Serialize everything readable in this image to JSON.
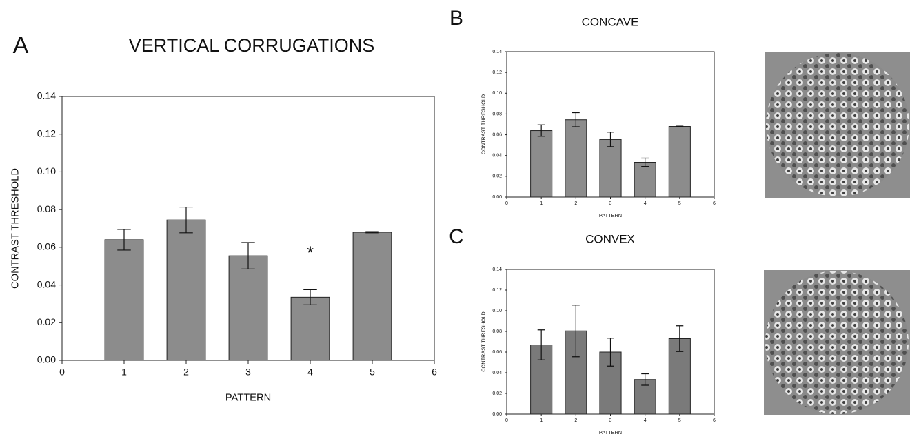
{
  "chart_data": [
    {
      "type": "bar",
      "panel": "A",
      "title": "VERTICAL CORRUGATIONS",
      "xlabel": "PATTERN",
      "ylabel": "CONTRAST THRESHOLD",
      "x": [
        1,
        2,
        3,
        4,
        5
      ],
      "values": [
        0.064,
        0.0745,
        0.0555,
        0.0335,
        0.068
      ],
      "errors": [
        0.0055,
        0.0068,
        0.007,
        0.004,
        0.0003
      ],
      "color": "#8c8c8c",
      "annotation": "*",
      "xlim": [
        0,
        6
      ],
      "xticks": [
        0,
        1,
        2,
        3,
        4,
        5,
        6
      ],
      "ylim": [
        0,
        0.14
      ],
      "yticks": [
        {
          "value": 0,
          "label": "0.00"
        },
        {
          "value": 0.02,
          "label": "0.02"
        },
        {
          "value": 0.04,
          "label": "0.04"
        },
        {
          "value": 0.06,
          "label": "0.06"
        },
        {
          "value": 0.08,
          "label": "0.08"
        },
        {
          "value": 0.1,
          "label": "0.10"
        },
        {
          "value": 0.12,
          "label": "0.12"
        },
        {
          "value": 0.14,
          "label": "0.14"
        }
      ]
    },
    {
      "type": "bar",
      "panel": "B",
      "title": "CONCAVE",
      "xlabel": "PATTERN",
      "ylabel": "CONTRAST THRESHOLD",
      "x": [
        1,
        2,
        3,
        4,
        5
      ],
      "values": [
        0.064,
        0.0745,
        0.0555,
        0.0335,
        0.068
      ],
      "errors": [
        0.0055,
        0.0068,
        0.007,
        0.004,
        0.0003
      ],
      "color": "#8c8c8c",
      "xlim": [
        0,
        6
      ],
      "xticks": [
        0,
        1,
        2,
        3,
        4,
        5,
        6
      ],
      "ylim": [
        0,
        0.14
      ],
      "yticks": [
        {
          "value": 0,
          "label": "0.00"
        },
        {
          "value": 0.02,
          "label": "0.02"
        },
        {
          "value": 0.04,
          "label": "0.04"
        },
        {
          "value": 0.06,
          "label": "0.06"
        },
        {
          "value": 0.08,
          "label": "0.08"
        },
        {
          "value": 0.1,
          "label": "0.10"
        },
        {
          "value": 0.12,
          "label": "0.12"
        },
        {
          "value": 0.14,
          "label": "0.14"
        }
      ]
    },
    {
      "type": "bar",
      "panel": "C",
      "title": "CONVEX",
      "xlabel": "PATTERN",
      "ylabel": "CONTRAST THRESHOLD",
      "x": [
        1,
        2,
        3,
        4,
        5
      ],
      "values": [
        0.067,
        0.0805,
        0.06,
        0.0335,
        0.073
      ],
      "errors": [
        0.0145,
        0.025,
        0.0135,
        0.0055,
        0.0125
      ],
      "color": "#7a7a7a",
      "xlim": [
        0,
        6
      ],
      "xticks": [
        0,
        1,
        2,
        3,
        4,
        5,
        6
      ],
      "ylim": [
        0,
        0.14
      ],
      "yticks": [
        {
          "value": 0,
          "label": "0.00"
        },
        {
          "value": 0.02,
          "label": "0.02"
        },
        {
          "value": 0.04,
          "label": "0.04"
        },
        {
          "value": 0.06,
          "label": "0.06"
        },
        {
          "value": 0.08,
          "label": "0.08"
        },
        {
          "value": 0.1,
          "label": "0.10"
        },
        {
          "value": 0.12,
          "label": "0.12"
        },
        {
          "value": 0.14,
          "label": "0.14"
        }
      ]
    }
  ]
}
